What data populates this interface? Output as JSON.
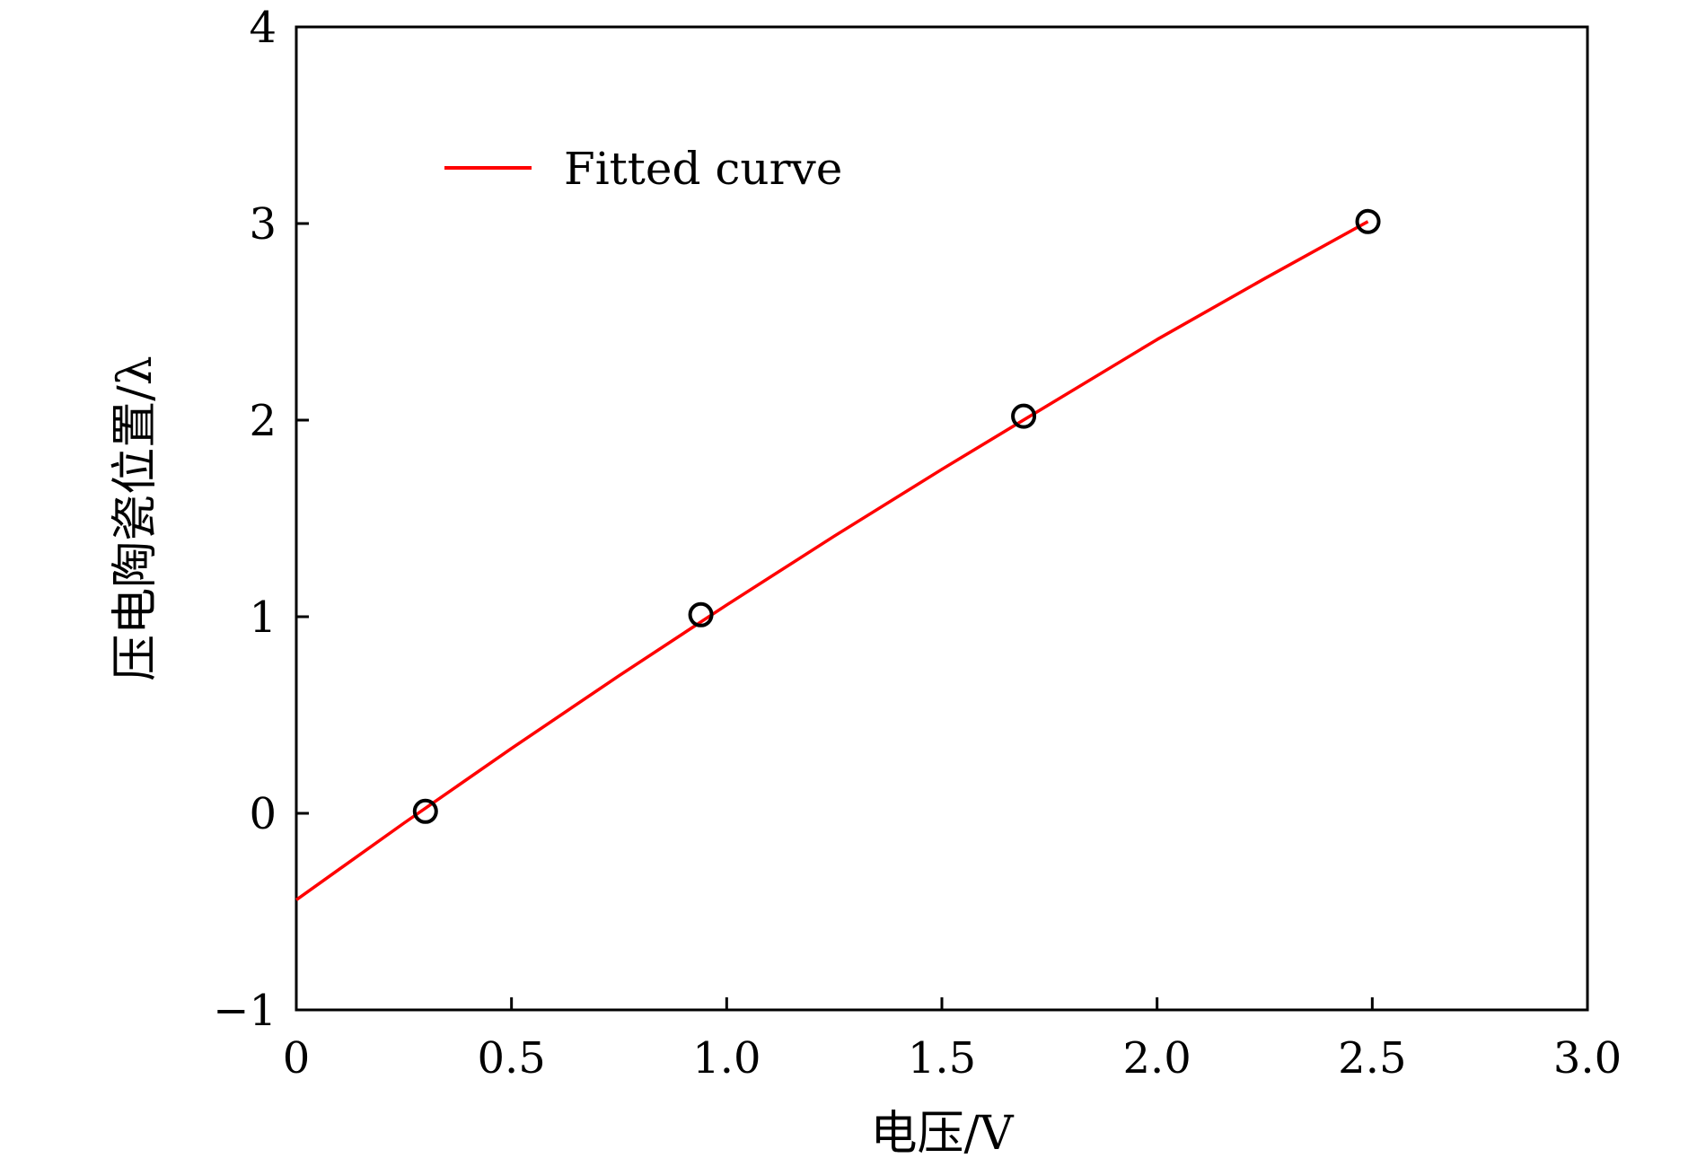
{
  "chart_data": {
    "type": "scatter",
    "title": "",
    "xlabel": "电压/V",
    "ylabel": "压电陶瓷位置/λ",
    "xlim": [
      0,
      3.0
    ],
    "ylim": [
      -1,
      4
    ],
    "xticks": [
      0,
      0.5,
      1.0,
      1.5,
      2.0,
      2.5,
      3.0
    ],
    "xtick_labels": [
      "0",
      "0.5",
      "1.0",
      "1.5",
      "2.0",
      "2.5",
      "3.0"
    ],
    "yticks": [
      -1,
      0,
      1,
      2,
      3,
      4
    ],
    "ytick_labels": [
      "−1",
      "0",
      "1",
      "2",
      "3",
      "4"
    ],
    "grid": false,
    "legend_position": "top-left",
    "series": [
      {
        "kind": "scatter",
        "marker": "open-circle",
        "color": "#000000",
        "x": [
          0.3,
          0.94,
          1.69,
          2.49
        ],
        "y": [
          0.01,
          1.01,
          2.02,
          3.01
        ]
      },
      {
        "kind": "line",
        "name": "Fitted curve",
        "color": "#ff0000",
        "x": [
          0,
          0.25,
          0.5,
          0.75,
          1.0,
          1.25,
          1.5,
          1.75,
          2.0,
          2.25,
          2.49
        ],
        "y": [
          -0.44,
          -0.05,
          0.33,
          0.7,
          1.06,
          1.41,
          1.75,
          2.08,
          2.41,
          2.72,
          3.01
        ]
      }
    ]
  }
}
